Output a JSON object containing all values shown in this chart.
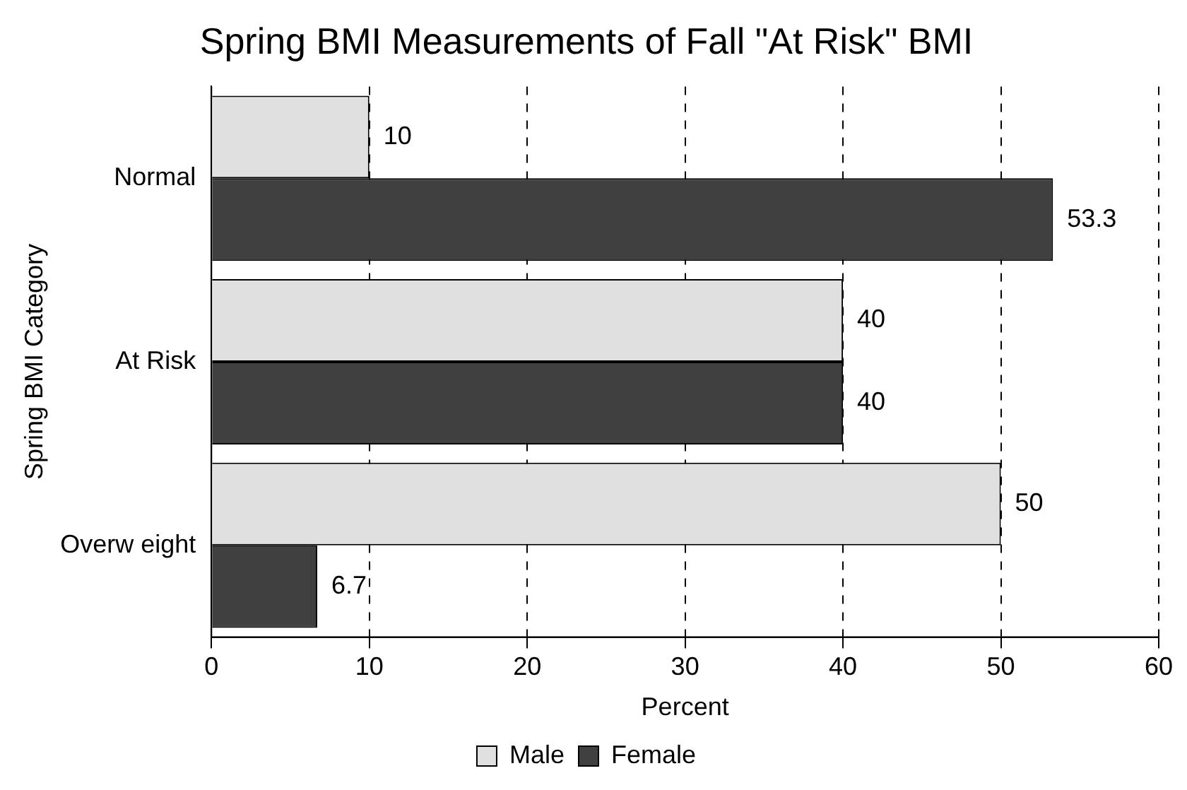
{
  "chart_data": {
    "type": "bar",
    "orientation": "horizontal",
    "title": "Spring BMI Measurements of Fall \"At Risk\" BMI",
    "xlabel": "Percent",
    "ylabel": "Spring BMI Category",
    "categories": [
      "Normal",
      "At Risk",
      "Overw eight"
    ],
    "series": [
      {
        "name": "Male",
        "color": "#e0e0e0",
        "values": [
          10,
          40,
          50
        ]
      },
      {
        "name": "Female",
        "color": "#404040",
        "values": [
          53.3,
          40,
          6.7
        ]
      }
    ],
    "xlim": [
      0,
      60
    ],
    "xticks": [
      0,
      10,
      20,
      30,
      40,
      50,
      60
    ],
    "grid": "x",
    "legend": "bottom",
    "data_labels": true
  }
}
